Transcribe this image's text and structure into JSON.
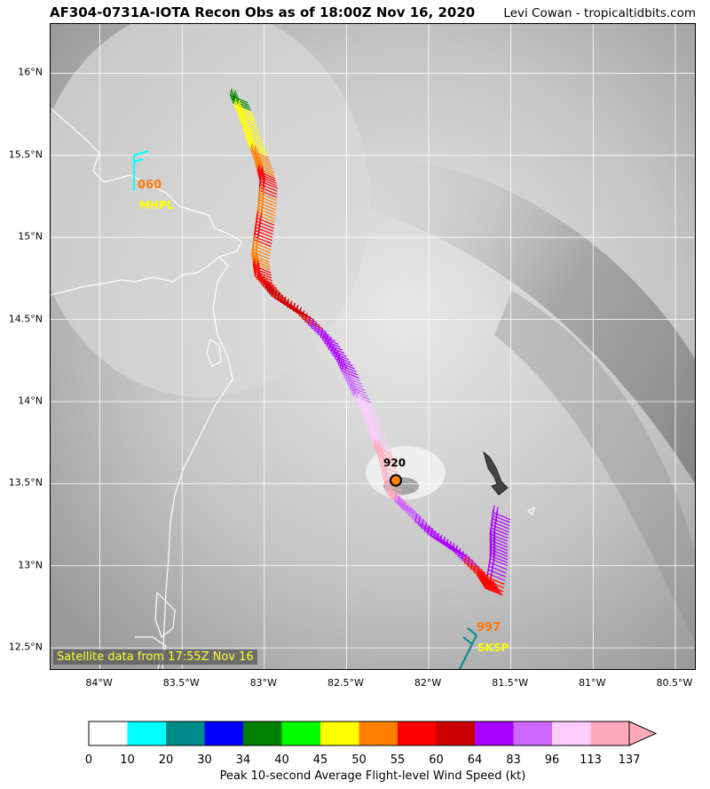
{
  "title": "AF304-0731A-IOTA Recon Obs as of 18:00Z Nov 16, 2020",
  "credit": "Levi Cowan - tropicaltidbits.com",
  "satellite_caption": "Satellite data from 17:55Z Nov 16",
  "lat_ticks": [
    "16°N",
    "15.5°N",
    "15°N",
    "14.5°N",
    "14°N",
    "13.5°N",
    "13°N",
    "12.5°N"
  ],
  "lon_ticks": [
    "84°W",
    "83.5°W",
    "83°W",
    "82.5°W",
    "82°W",
    "81.5°W",
    "81°W",
    "80.5°W"
  ],
  "center_pressure": "920",
  "stations": [
    {
      "value": "060",
      "id": "MHPL"
    },
    {
      "value": "997",
      "id": "SKSP"
    }
  ],
  "colorbar": {
    "ticks": [
      "0",
      "10",
      "20",
      "30",
      "34",
      "40",
      "45",
      "50",
      "55",
      "60",
      "64",
      "83",
      "96",
      "113",
      "137"
    ],
    "colors": [
      "#ffffff",
      "#00ffff",
      "#008b8b",
      "#0000ff",
      "#008000",
      "#00ff00",
      "#ffff00",
      "#ff7f00",
      "#ff0000",
      "#cc0000",
      "#aa00ff",
      "#cc66ff",
      "#ffccff",
      "#ffaabb"
    ],
    "label": "Peak 10-second Average Flight-level Wind Speed (kt)"
  },
  "map_data": {
    "extent": {
      "lon_min": -84.3,
      "lon_max": -80.37,
      "lat_min": 12.36,
      "lat_max": 16.3
    },
    "grid": true,
    "track": [
      {
        "lon": -83.1,
        "lat": 15.82,
        "c": 4
      },
      {
        "lon": -83.05,
        "lat": 15.7,
        "c": 6
      },
      {
        "lon": -83.0,
        "lat": 15.55,
        "c": 6
      },
      {
        "lon": -82.95,
        "lat": 15.42,
        "c": 7
      },
      {
        "lon": -82.92,
        "lat": 15.3,
        "c": 8
      },
      {
        "lon": -82.93,
        "lat": 15.15,
        "c": 7
      },
      {
        "lon": -82.95,
        "lat": 15.0,
        "c": 8
      },
      {
        "lon": -82.97,
        "lat": 14.85,
        "c": 7
      },
      {
        "lon": -82.95,
        "lat": 14.72,
        "c": 8
      },
      {
        "lon": -82.85,
        "lat": 14.6,
        "c": 9
      },
      {
        "lon": -82.7,
        "lat": 14.5,
        "c": 9
      },
      {
        "lon": -82.55,
        "lat": 14.35,
        "c": 10
      },
      {
        "lon": -82.45,
        "lat": 14.2,
        "c": 10
      },
      {
        "lon": -82.38,
        "lat": 14.05,
        "c": 11
      },
      {
        "lon": -82.3,
        "lat": 13.9,
        "c": 12
      },
      {
        "lon": -82.25,
        "lat": 13.75,
        "c": 12
      },
      {
        "lon": -82.2,
        "lat": 13.62,
        "c": 13
      },
      {
        "lon": -82.15,
        "lat": 13.4,
        "c": 13
      },
      {
        "lon": -82.05,
        "lat": 13.3,
        "c": 11
      },
      {
        "lon": -81.9,
        "lat": 13.15,
        "c": 10
      },
      {
        "lon": -81.75,
        "lat": 13.05,
        "c": 10
      },
      {
        "lon": -81.6,
        "lat": 12.9,
        "c": 8
      },
      {
        "lon": -81.55,
        "lat": 12.82,
        "c": 8
      },
      {
        "lon": -81.52,
        "lat": 13.0,
        "c": 10
      },
      {
        "lon": -81.52,
        "lat": 13.15,
        "c": 10
      },
      {
        "lon": -81.5,
        "lat": 13.3,
        "c": 10
      }
    ],
    "center": {
      "lon": -82.2,
      "lat": 13.52
    },
    "station_points": [
      {
        "lon": -83.78,
        "lat": 15.24
      },
      {
        "lon": -81.66,
        "lat": 12.58
      }
    ]
  }
}
